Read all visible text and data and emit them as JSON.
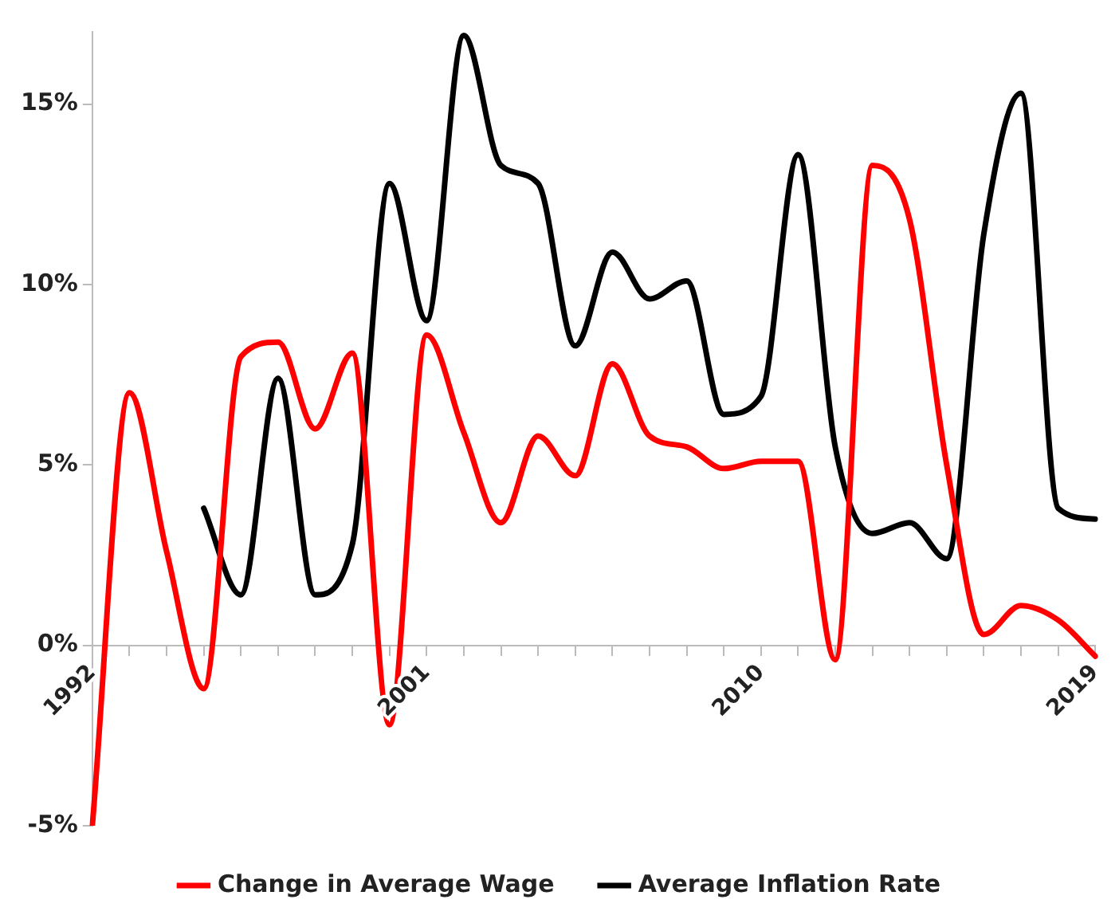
{
  "chart_data": {
    "type": "line",
    "categories": [
      "1992",
      null,
      null,
      null,
      null,
      null,
      null,
      null,
      null,
      "2001",
      null,
      null,
      null,
      null,
      null,
      null,
      null,
      null,
      "2010",
      null,
      null,
      null,
      null,
      null,
      null,
      null,
      null,
      "2019"
    ],
    "series": [
      {
        "name": "Change in Average Wage",
        "color": "#ff0000",
        "values": [
          -5,
          7.0,
          2.6,
          -1.2,
          8.0,
          8.4,
          6.0,
          8.1,
          -2.2,
          8.6,
          5.9,
          3.4,
          5.8,
          4.7,
          7.8,
          5.8,
          5.5,
          4.9,
          5.1,
          5.1,
          -0.4,
          13.3,
          11.8,
          5.0,
          0.3,
          1.1,
          0.7,
          -0.3
        ]
      },
      {
        "name": "Average Inflation Rate",
        "color": "#000000",
        "values": [
          null,
          null,
          null,
          3.8,
          1.4,
          7.4,
          1.4,
          2.8,
          12.8,
          9.0,
          16.9,
          13.3,
          12.8,
          8.3,
          10.9,
          9.6,
          10.1,
          6.4,
          6.9,
          13.6,
          5.5,
          3.1,
          3.4,
          2.4,
          11.4,
          15.3,
          3.8,
          3.5
        ]
      }
    ],
    "ylim": [
      -5,
      17
    ],
    "yticks": [
      {
        "value": -5,
        "label": "-5%"
      },
      {
        "value": 0,
        "label": "0%"
      },
      {
        "value": 5,
        "label": "5%"
      },
      {
        "value": 10,
        "label": "10%"
      },
      {
        "value": 15,
        "label": "15%"
      }
    ],
    "grid": false,
    "legend": "bottom",
    "marker": "none",
    "line_style": "solid"
  }
}
